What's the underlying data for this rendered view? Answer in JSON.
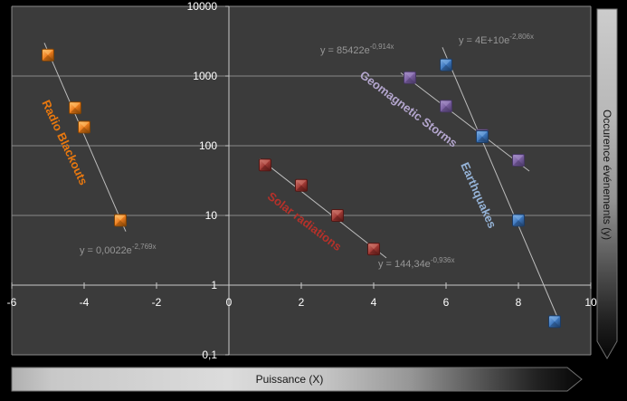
{
  "chart_data": {
    "type": "scatter",
    "y_scale": "log",
    "x_axis": {
      "label": "Puissance (X)",
      "min": -6,
      "max": 10,
      "tick_values": [
        -6,
        -4,
        -2,
        0,
        2,
        4,
        6,
        8,
        10
      ],
      "tick_labels": [
        "-6",
        "-4",
        "-2",
        "0",
        "2",
        "4",
        "6",
        "8",
        "10"
      ]
    },
    "y_axis": {
      "label": "Occurence événements (y)",
      "scale": "log",
      "min": 0.1,
      "max": 10000,
      "tick_values": [
        10000,
        1000,
        100,
        10,
        1,
        0.1
      ],
      "tick_labels": [
        "10000",
        "1000",
        "100",
        "10",
        "1",
        "0,1"
      ]
    },
    "grid": "horizontal-decades",
    "legend": "none",
    "series": [
      {
        "name": "Radio Blackouts",
        "marker_color": "#EE7D1E",
        "marker_light": "#FFC470",
        "marker_dark": "#7E4205",
        "label_color": "#E8780F",
        "points": [
          {
            "x": -5,
            "y": 2000
          },
          {
            "x": -4.25,
            "y": 350
          },
          {
            "x": -4,
            "y": 185
          },
          {
            "x": -3,
            "y": 8.5
          }
        ],
        "trendline": {
          "type": "exponential",
          "a": 0.0022,
          "b": -2.769
        },
        "equation_prefix": "y = 0,0022e",
        "equation_exponent": "-2,769x"
      },
      {
        "name": "Solar radiations",
        "marker_color": "#A33B36",
        "marker_light": "#D07A70",
        "marker_dark": "#521714",
        "label_color": "#B5312A",
        "points": [
          {
            "x": 1,
            "y": 53
          },
          {
            "x": 2,
            "y": 27
          },
          {
            "x": 3,
            "y": 10
          },
          {
            "x": 4,
            "y": 3.3
          }
        ],
        "trendline": {
          "type": "exponential",
          "a": 144.34,
          "b": -0.936
        },
        "equation_prefix": "y = 144,34e",
        "equation_exponent": "-0,936x"
      },
      {
        "name": "Geomagnetic Storms",
        "marker_color": "#7B60A2",
        "marker_light": "#A791C8",
        "marker_dark": "#473763",
        "label_color": "#B4A6CE",
        "points": [
          {
            "x": 5,
            "y": 950
          },
          {
            "x": 6,
            "y": 370
          },
          {
            "x": 7,
            "y": 141
          },
          {
            "x": 8,
            "y": 62
          }
        ],
        "trendline": {
          "type": "exponential",
          "a": 85422,
          "b": -0.914
        },
        "equation_prefix": "y = 85422e",
        "equation_exponent": "-0,914x"
      },
      {
        "name": "Earthquakes",
        "marker_color": "#3E78BF",
        "marker_light": "#7FB0E4",
        "marker_dark": "#1D3C64",
        "label_color": "#95B3D7",
        "points": [
          {
            "x": 6,
            "y": 1450
          },
          {
            "x": 7,
            "y": 135
          },
          {
            "x": 8,
            "y": 8.5
          },
          {
            "x": 9,
            "y": 0.3
          }
        ],
        "trendline": {
          "type": "exponential",
          "a": 40000000000,
          "b": -2.806
        },
        "equation_prefix": "y = 4E+10e",
        "equation_exponent": "-2,806x"
      }
    ],
    "colors": {
      "plot_background": "#3B3B3B",
      "outer_background": "#000000",
      "gridline": "#8A8A8A",
      "axis_line": "#C9C9C9",
      "trendline": "#BDBDBD",
      "tick_text": "#FFFFFF",
      "equation_text": "#969696",
      "axis_title_text": "#161616"
    }
  }
}
